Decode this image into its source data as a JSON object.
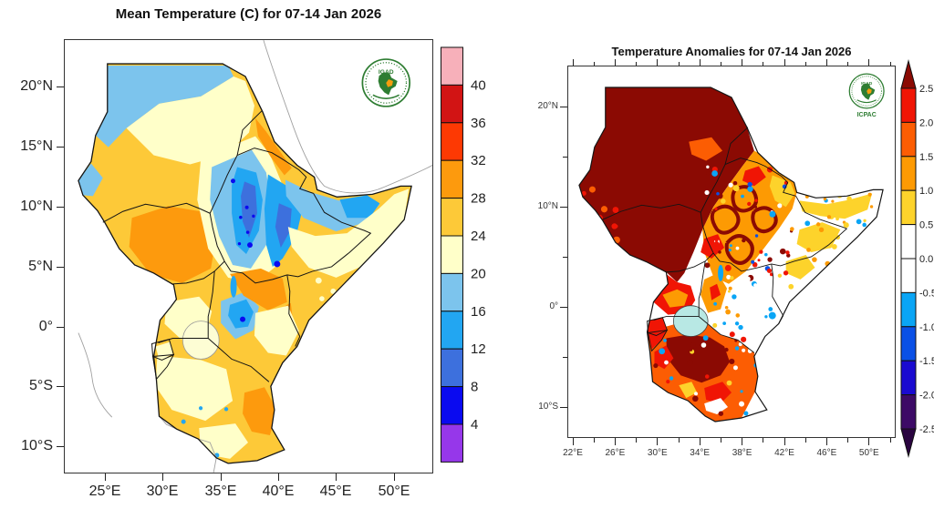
{
  "left_panel": {
    "title": "Mean Temperature (C) for 07-14 Jan 2026",
    "logo_text": "IGAD",
    "x_tick_labels": [
      "25°E",
      "30°E",
      "35°E",
      "40°E",
      "45°E",
      "50°E"
    ],
    "y_tick_labels": [
      "20°N",
      "15°N",
      "10°N",
      "5°N",
      "0°",
      "5°S",
      "10°S"
    ],
    "colorbar_labels": [
      "40",
      "36",
      "32",
      "28",
      "24",
      "20",
      "16",
      "12",
      "8",
      "4"
    ],
    "colorbar_colors": [
      "#f7b0ba",
      "#d21414",
      "#fd3903",
      "#fd9a0d",
      "#fdc938",
      "#ffffc9",
      "#7cc4ed",
      "#22a6f2",
      "#3d70dd",
      "#0a0af0",
      "#9637ea"
    ]
  },
  "right_panel": {
    "title": "Temperature Anomalies for 07-14 Jan 2026",
    "logo_text": "IGAD",
    "logo_subtext": "ICPAC",
    "x_tick_labels": [
      "22°E",
      "26°E",
      "30°E",
      "34°E",
      "38°E",
      "42°E",
      "46°E",
      "50°E"
    ],
    "y_tick_labels": [
      "20°N",
      "10°N",
      "0°",
      "10°S"
    ],
    "colorbar_labels": [
      "2.5",
      "2.0",
      "1.5",
      "1.0",
      "0.5",
      "0.0",
      "-0.5",
      "-1.0",
      "-1.5",
      "-2.0",
      "-2.5"
    ],
    "colorbar_colors": [
      "#8b0a03",
      "#f01505",
      "#fc5d03",
      "#fd9a03",
      "#fdd32b",
      "#ffffff",
      "#ffffff",
      "#0aa5f5",
      "#0a50e6",
      "#1a0ad0",
      "#3d0a66",
      "#2a0440"
    ]
  },
  "map_colors": {
    "lake_fill_right": "#b8e8e4",
    "lake_fill_left": "#fdfdd4",
    "coastline_gray": "#a0a0a0",
    "border_black": "#141414",
    "logo_green": "#2e7d32",
    "logo_orange": "#f59d0d"
  },
  "chart_data": [
    {
      "type": "heatmap",
      "title": "Mean Temperature (C) for 07-14 Jan 2026",
      "units": "degrees C",
      "xlabel_ticks": [
        "25°E",
        "30°E",
        "35°E",
        "40°E",
        "45°E",
        "50°E"
      ],
      "ylabel_ticks": [
        "20°N",
        "15°N",
        "10°N",
        "5°N",
        "0°",
        "5°S",
        "10°S"
      ],
      "scale_breaks": [
        4,
        8,
        12,
        16,
        20,
        24,
        28,
        32,
        36,
        40
      ],
      "legend_position": "right",
      "region": "IGAD / Greater Horn of Africa"
    },
    {
      "type": "heatmap",
      "title": "Temperature Anomalies for 07-14 Jan 2026",
      "units": "degrees C anomaly",
      "xlabel_ticks": [
        "22°E",
        "26°E",
        "30°E",
        "34°E",
        "38°E",
        "42°E",
        "46°E",
        "50°E"
      ],
      "ylabel_ticks": [
        "20°N",
        "10°N",
        "0°",
        "10°S"
      ],
      "scale_breaks": [
        -2.5,
        -2.0,
        -1.5,
        -1.0,
        -0.5,
        0.0,
        0.5,
        1.0,
        1.5,
        2.0,
        2.5
      ],
      "legend_position": "right",
      "region": "IGAD / Greater Horn of Africa"
    }
  ]
}
